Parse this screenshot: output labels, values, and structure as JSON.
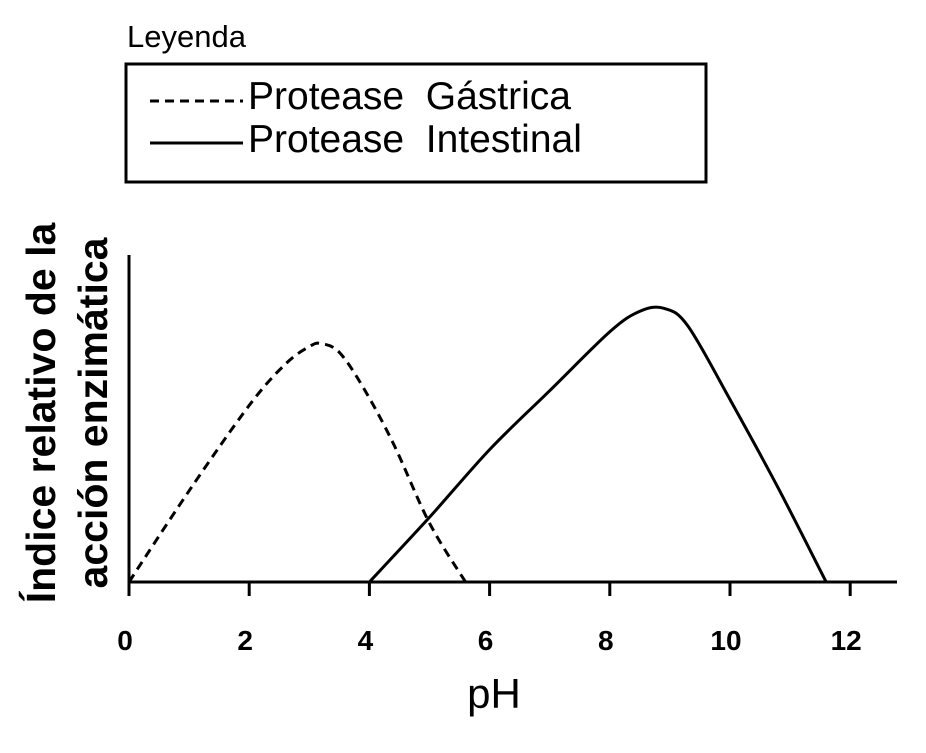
{
  "chart_data": {
    "type": "line",
    "legend": {
      "title": "Leyenda",
      "position": "top-left"
    },
    "xlabel": "pH",
    "ylabel_lines": [
      "Índice relativo de la",
      "acción enzimática"
    ],
    "xlim": [
      0,
      13
    ],
    "ylim": [
      0,
      1
    ],
    "y_tick_labels": false,
    "grid": false,
    "x_ticks": [
      0,
      2,
      4,
      6,
      8,
      10,
      12
    ],
    "x_tick_labels": [
      "0",
      "2",
      "4",
      "6",
      "8",
      "10",
      "12"
    ],
    "series": [
      {
        "name": "Protease  Gástrica",
        "style": "dashed",
        "color": "#000000",
        "x": [
          0,
          1,
          2,
          2.6,
          3.0,
          3.2,
          3.5,
          3.9,
          4.4,
          5.0,
          5.6
        ],
        "y": [
          0,
          0.31,
          0.6,
          0.74,
          0.8,
          0.81,
          0.78,
          0.66,
          0.47,
          0.2,
          0
        ]
      },
      {
        "name": "Protease  Intestinal",
        "style": "solid",
        "color": "#000000",
        "x": [
          4.0,
          5.0,
          6.0,
          7.0,
          8.0,
          8.5,
          8.9,
          9.3,
          10.0,
          10.8,
          11.6
        ],
        "y": [
          0,
          0.22,
          0.45,
          0.65,
          0.85,
          0.92,
          0.93,
          0.87,
          0.62,
          0.32,
          0
        ]
      }
    ]
  }
}
